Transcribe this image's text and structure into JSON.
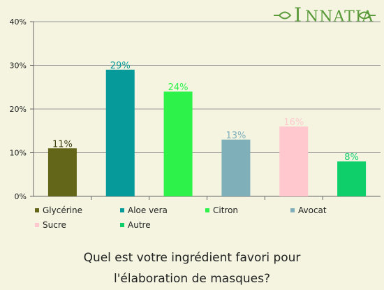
{
  "brand": {
    "name": "Innatia",
    "color": "#5a9a3a"
  },
  "question": {
    "line1": "Quel est votre ingrédient favori pour",
    "line2": "l'élaboration de masques?"
  },
  "chart_data": {
    "type": "bar",
    "title": "Quel est votre ingrédient favori pour l'élaboration de masques?",
    "categories": [
      "Glycérine",
      "Aloe vera",
      "Citron",
      "Avocat",
      "Sucre",
      "Autre"
    ],
    "values": [
      11,
      29,
      24,
      13,
      16,
      8
    ],
    "value_labels": [
      "11%",
      "29%",
      "24%",
      "13%",
      "16%",
      "8%"
    ],
    "colors": [
      "#636619",
      "#079a9a",
      "#2df24a",
      "#7fb0ba",
      "#ffc8cf",
      "#0ecf6a"
    ],
    "ylim": [
      0,
      40
    ],
    "yticks": [
      0,
      10,
      20,
      30,
      40
    ],
    "ytick_labels": [
      "0%",
      "10%",
      "20%",
      "30%",
      "40%"
    ],
    "xlabel": "",
    "ylabel": "",
    "grid": true,
    "legend_placement": "bottom"
  }
}
